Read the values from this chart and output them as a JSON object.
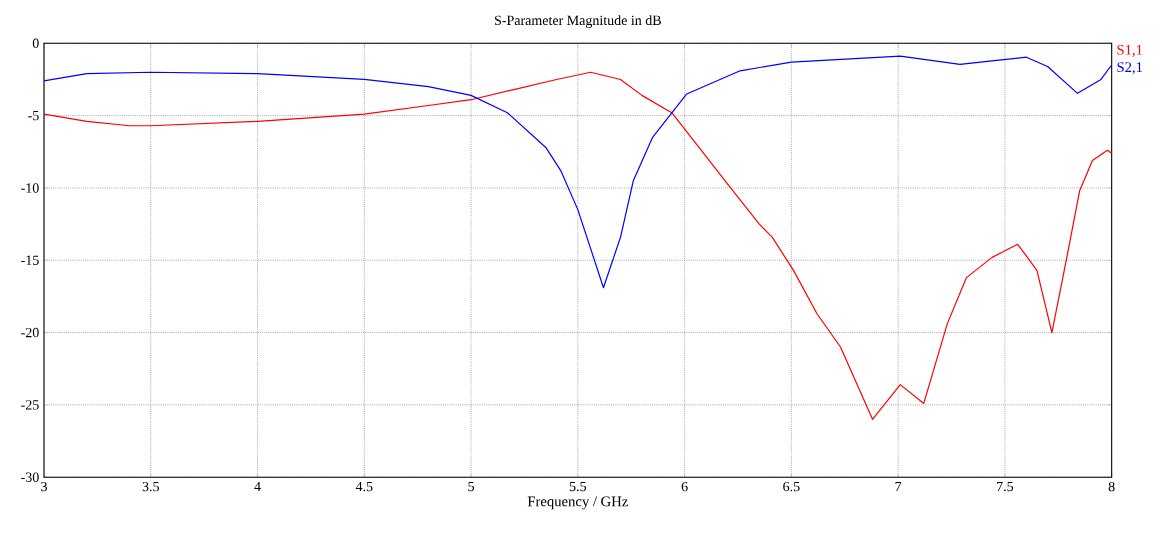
{
  "chart_data": {
    "type": "line",
    "title": "S-Parameter Magnitude in dB",
    "xlabel": "Frequency / GHz",
    "xlim": [
      3,
      8
    ],
    "ylim": [
      -30,
      0
    ],
    "xticks": [
      3,
      3.5,
      4,
      4.5,
      5,
      5.5,
      6,
      6.5,
      7,
      7.5,
      8
    ],
    "yticks": [
      -30,
      -25,
      -20,
      -15,
      -10,
      -5,
      0
    ],
    "grid": true,
    "legend": "right",
    "series": [
      {
        "name": "S1,1",
        "color": "#ff0000",
        "x": [
          3.0,
          3.2,
          3.4,
          3.5,
          4.0,
          4.5,
          4.8,
          5.0,
          5.2,
          5.4,
          5.56,
          5.7,
          5.8,
          5.94,
          6.21,
          6.35,
          6.41,
          6.51,
          6.62,
          6.73,
          6.88,
          7.01,
          7.12,
          7.23,
          7.32,
          7.44,
          7.56,
          7.65,
          7.72,
          7.79,
          7.85,
          7.91,
          7.98,
          8.0
        ],
        "values": [
          -4.9,
          -5.4,
          -5.7,
          -5.7,
          -5.4,
          -4.9,
          -4.3,
          -3.9,
          -3.2,
          -2.5,
          -2.0,
          -2.5,
          -3.6,
          -4.8,
          -9.9,
          -12.5,
          -13.4,
          -15.7,
          -18.7,
          -21.0,
          -26.0,
          -23.6,
          -24.9,
          -19.4,
          -16.2,
          -14.8,
          -13.9,
          -15.7,
          -20.0,
          -14.8,
          -10.2,
          -8.1,
          -7.4,
          -7.6
        ]
      },
      {
        "name": "S2,1",
        "color": "#0000ff",
        "x": [
          3.0,
          3.2,
          3.5,
          4.0,
          4.5,
          4.8,
          5.0,
          5.17,
          5.35,
          5.42,
          5.5,
          5.62,
          5.7,
          5.76,
          5.85,
          6.01,
          6.26,
          6.5,
          7.01,
          7.29,
          7.45,
          7.6,
          7.7,
          7.84,
          7.95,
          8.0
        ],
        "values": [
          -2.6,
          -2.1,
          -2.0,
          -2.1,
          -2.5,
          -3.0,
          -3.6,
          -4.8,
          -7.2,
          -8.8,
          -11.5,
          -16.9,
          -13.4,
          -9.5,
          -6.5,
          -3.5,
          -1.9,
          -1.3,
          -0.88,
          -1.45,
          -1.2,
          -0.96,
          -1.6,
          -3.46,
          -2.5,
          -1.5
        ]
      }
    ]
  }
}
